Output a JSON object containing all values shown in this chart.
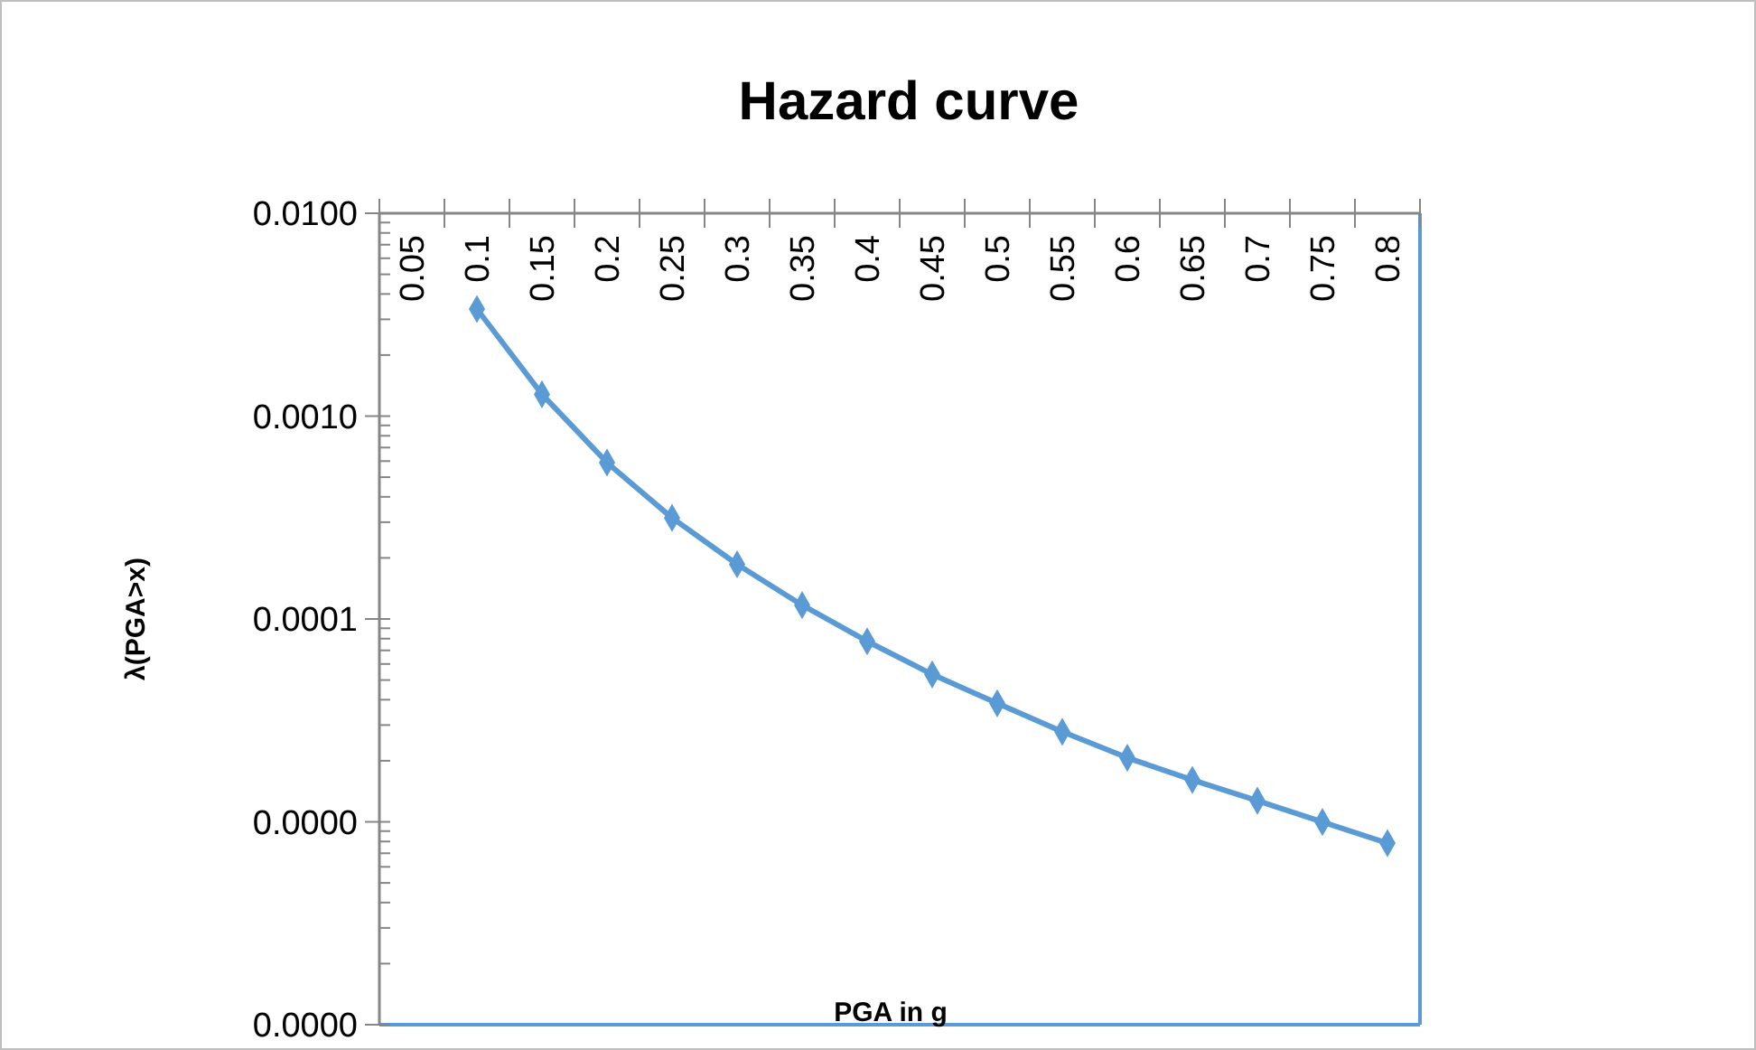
{
  "chart_data": {
    "type": "line",
    "title": "Hazard curve",
    "xlabel": "PGA  in g",
    "ylabel": "λ(PGA>x)",
    "categories": [
      "0.05",
      "0.1",
      "0.15",
      "0.2",
      "0.25",
      "0.3",
      "0.35",
      "0.4",
      "0.45",
      "0.5",
      "0.55",
      "0.6",
      "0.65",
      "0.7",
      "0.75",
      "0.8"
    ],
    "series": [
      {
        "color": "#5b9bd5",
        "values": [
          null,
          0.00337,
          0.00128,
          0.00059,
          0.000315,
          0.000186,
          0.000117,
          7.76e-05,
          5.33e-05,
          3.84e-05,
          2.78e-05,
          2.07e-05,
          1.61e-05,
          1.27e-05,
          9.98e-06,
          7.85e-06
        ]
      }
    ],
    "log": "y",
    "ylim": [
      1e-06,
      0.01
    ],
    "yticks": [
      {
        "value": 0.01,
        "label": "0.0100"
      },
      {
        "value": 0.001,
        "label": "0.0010"
      },
      {
        "value": 0.0001,
        "label": "0.0001"
      },
      {
        "value": 1e-05,
        "label": "0.0000"
      },
      {
        "value": 1e-06,
        "label": "0.0000"
      }
    ],
    "marker": "diamond",
    "line_style": "solid"
  }
}
